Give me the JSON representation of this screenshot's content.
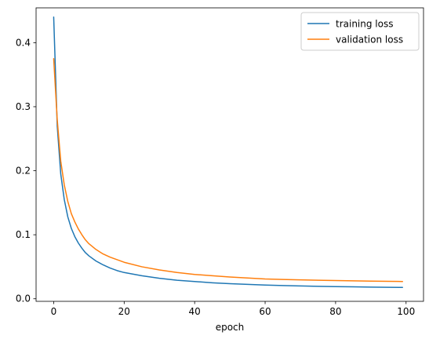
{
  "chart_data": {
    "type": "line",
    "title": "",
    "xlabel": "epoch",
    "ylabel": "",
    "xlim": [
      -5,
      104.95
    ],
    "ylim": [
      -0.004,
      0.4544
    ],
    "xticks": [
      0,
      20,
      40,
      60,
      80,
      100
    ],
    "xtick_labels": [
      "0",
      "20",
      "40",
      "60",
      "80",
      "100"
    ],
    "yticks": [
      0.0,
      0.1,
      0.2,
      0.3,
      0.4
    ],
    "ytick_labels": [
      "0.0",
      "0.1",
      "0.2",
      "0.3",
      "0.4"
    ],
    "grid": false,
    "legend_position": "top-right",
    "x": [
      0,
      1,
      2,
      3,
      4,
      5,
      6,
      7,
      8,
      9,
      10,
      12,
      14,
      16,
      18,
      20,
      25,
      30,
      35,
      40,
      45,
      50,
      55,
      60,
      65,
      70,
      75,
      80,
      85,
      90,
      95,
      99
    ],
    "series": [
      {
        "name": "training loss",
        "color": "#1f77b4",
        "values": [
          0.44,
          0.27,
          0.195,
          0.155,
          0.128,
          0.11,
          0.097,
          0.087,
          0.079,
          0.072,
          0.067,
          0.059,
          0.053,
          0.048,
          0.044,
          0.041,
          0.036,
          0.032,
          0.029,
          0.027,
          0.025,
          0.0235,
          0.0225,
          0.0215,
          0.0207,
          0.02,
          0.0195,
          0.019,
          0.0186,
          0.0182,
          0.0179,
          0.0177
        ]
      },
      {
        "name": "validation loss",
        "color": "#ff7f0e",
        "values": [
          0.375,
          0.28,
          0.215,
          0.178,
          0.152,
          0.133,
          0.12,
          0.109,
          0.1,
          0.092,
          0.086,
          0.077,
          0.07,
          0.065,
          0.061,
          0.057,
          0.05,
          0.045,
          0.041,
          0.038,
          0.036,
          0.034,
          0.0325,
          0.031,
          0.0302,
          0.0295,
          0.029,
          0.0285,
          0.028,
          0.0276,
          0.0272,
          0.027
        ]
      }
    ]
  }
}
